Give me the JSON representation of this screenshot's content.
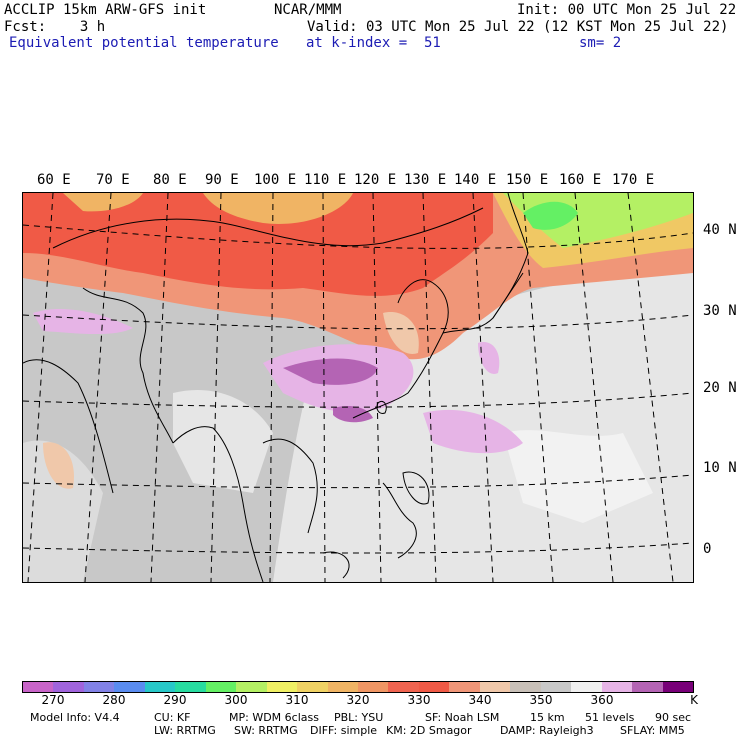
{
  "header": {
    "left_line1": "ACCLIP 15km ARW-GFS init",
    "center_line1": "NCAR/MMM",
    "right_line1": "Init: 00 UTC Mon 25 Jul 22",
    "left_line2": "Fcst:    3 h",
    "right_line2": "Valid: 03 UTC Mon 25 Jul 22 (12 KST Mon 25 Jul 22)",
    "field": "Equivalent potential temperature",
    "level": "at k-index =  51",
    "smooth": "sm= 2"
  },
  "map": {
    "lon_labels": [
      "60 E",
      "70 E",
      "80 E",
      "90 E",
      "100 E",
      "110 E",
      "120 E",
      "130 E",
      "140 E",
      "150 E",
      "160 E",
      "170 E"
    ],
    "lat_labels": [
      "40 N",
      "30 N",
      "20 N",
      "10 N",
      "0"
    ]
  },
  "colorbar": {
    "colors": [
      "#c864c8",
      "#a064dc",
      "#8282e6",
      "#5a8cf0",
      "#28c8c8",
      "#28dca0",
      "#64f064",
      "#b4f064",
      "#f0f064",
      "#f0d264",
      "#f0b464",
      "#f09664",
      "#f06450",
      "#f05a46",
      "#f09678",
      "#f0c8aa",
      "#c8c0b8",
      "#c8c8c8",
      "#f0f0f0",
      "#e6b4e6",
      "#b464b4",
      "#780078"
    ],
    "tick_labels": [
      "270",
      "280",
      "290",
      "300",
      "310",
      "320",
      "330",
      "340",
      "350",
      "360",
      "K"
    ]
  },
  "footer": {
    "line1": [
      "Model Info: V4.4",
      "CU: KF",
      "MP: WDM 6class",
      "PBL: YSU",
      "SF: Noah LSM",
      "15 km",
      "51 levels",
      "90 sec"
    ],
    "line2": [
      "LW: RRTMG",
      "SW: RRTMG",
      "DIFF: simple",
      "KM: 2D Smagor",
      "DAMP: Rayleigh3",
      "SFLAY: MM5"
    ]
  }
}
